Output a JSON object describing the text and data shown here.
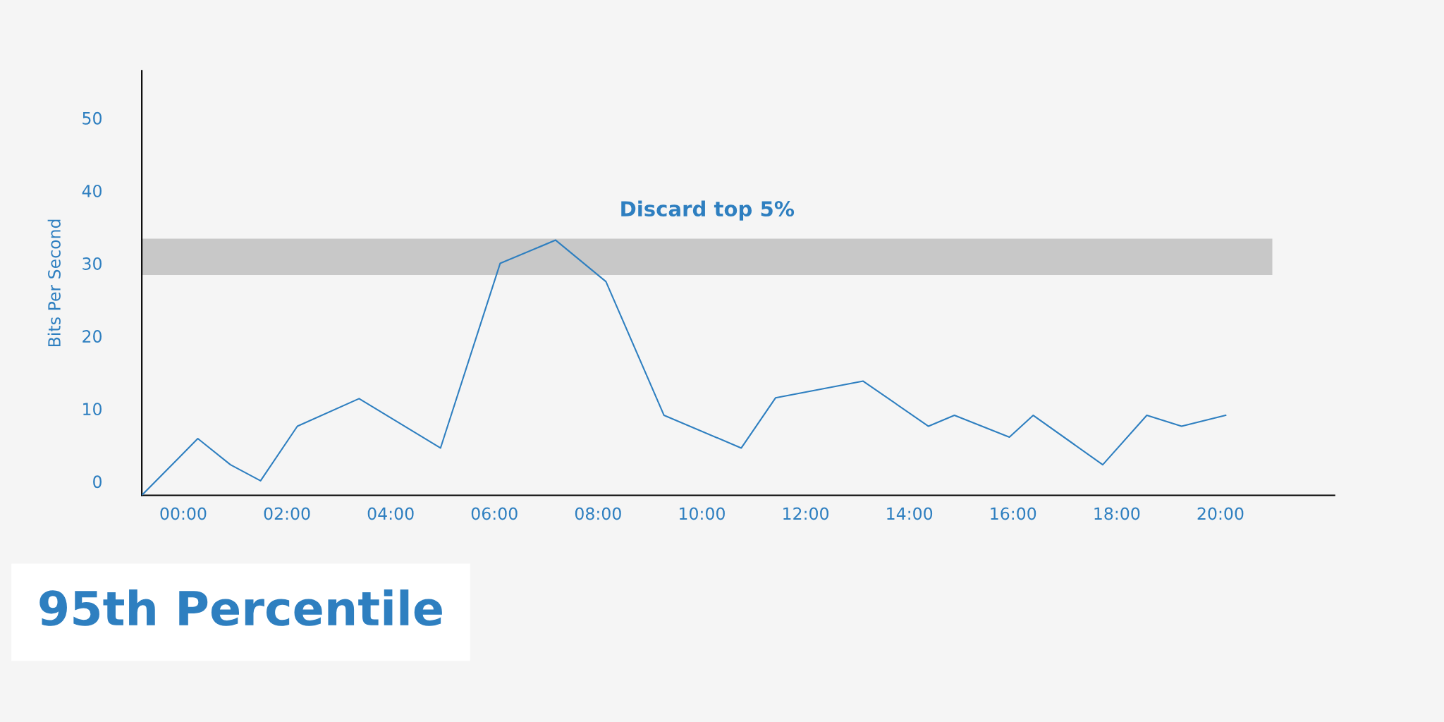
{
  "chart_data": {
    "type": "line",
    "title": "95th Percentile",
    "ylabel": "Bits Per Second",
    "x": [
      -0.8,
      0.28,
      0.91,
      1.49,
      2.2,
      3.39,
      4.96,
      6.11,
      7.18,
      8.15,
      9.27,
      10.76,
      11.42,
      13.11,
      14.37,
      14.87,
      15.93,
      16.39,
      17.73,
      18.58,
      19.25,
      20.1
    ],
    "series": [
      {
        "color": "#2e7fc0",
        "values": [
          -1.9,
          5.9,
          2.3,
          0.1,
          7.6,
          11.4,
          4.6,
          30,
          33.2,
          27.5,
          9.1,
          4.6,
          11.5,
          13.8,
          7.6,
          9.1,
          6.1,
          9.1,
          2.3,
          9.1,
          7.6,
          9.1
        ]
      }
    ],
    "xlim": [
      -0.8,
      22.2
    ],
    "ylim": [
      -1.9,
      56.5
    ],
    "xticks": [
      {
        "value": 0,
        "label": "00:00"
      },
      {
        "value": 2,
        "label": "02:00"
      },
      {
        "value": 4,
        "label": "04:00"
      },
      {
        "value": 6,
        "label": "06:00"
      },
      {
        "value": 8,
        "label": "08:00"
      },
      {
        "value": 10,
        "label": "10:00"
      },
      {
        "value": 12,
        "label": "12:00"
      },
      {
        "value": 14,
        "label": "14:00"
      },
      {
        "value": 16,
        "label": "16:00"
      },
      {
        "value": 18,
        "label": "18:00"
      },
      {
        "value": 20,
        "label": "20:00"
      }
    ],
    "yticks": [
      0,
      10,
      20,
      30,
      40,
      50
    ],
    "bands": [
      {
        "axis": "y",
        "from": 28.4,
        "to": 33.4,
        "label": "Discard top 5%",
        "color": "#c8c8c8"
      }
    ],
    "grid": false,
    "legend": false,
    "marker": "none",
    "line_style": "solid"
  }
}
